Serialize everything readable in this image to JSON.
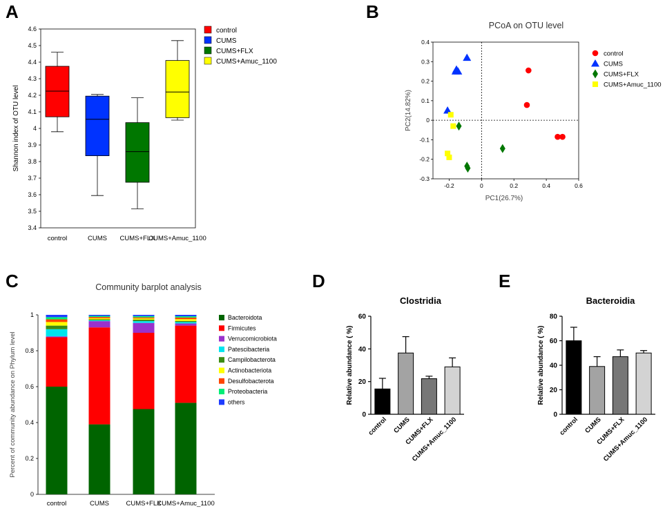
{
  "panels": {
    "A": {
      "letter": "A"
    },
    "B": {
      "letter": "B"
    },
    "C": {
      "letter": "C"
    },
    "D": {
      "letter": "D"
    },
    "E": {
      "letter": "E"
    }
  },
  "chart_data": [
    {
      "panel": "A",
      "type": "box",
      "title": "",
      "ylabel": "Shannon index of OTU level",
      "xlabel": "",
      "ylim": [
        3.4,
        4.6
      ],
      "yticks": [
        "3.4",
        "3.5",
        "3.6",
        "3.7",
        "3.8",
        "3.9",
        "4",
        "4.1",
        "4.2",
        "4.3",
        "4.4",
        "4.5",
        "4.6"
      ],
      "categories": [
        "control",
        "CUMS",
        "CUMS+FLX",
        "CUMS+Amuc_1100"
      ],
      "colors": [
        "#ff0000",
        "#0033ff",
        "#007700",
        "#ffff00"
      ],
      "boxes": [
        {
          "min": 3.98,
          "q1": 4.07,
          "median": 4.225,
          "q3": 4.375,
          "max": 4.46
        },
        {
          "min": 3.595,
          "q1": 3.835,
          "median": 4.055,
          "q3": 4.195,
          "max": 4.205
        },
        {
          "min": 3.515,
          "q1": 3.675,
          "median": 3.86,
          "q3": 4.035,
          "max": 4.185
        },
        {
          "min": 4.05,
          "q1": 4.065,
          "median": 4.22,
          "q3": 4.41,
          "max": 4.53
        }
      ],
      "legend": [
        "control",
        "CUMS",
        "CUMS+FLX",
        "CUMS+Amuc_1100"
      ],
      "legend_position": "right"
    },
    {
      "panel": "B",
      "type": "scatter",
      "title": "PCoA on OTU level",
      "xlabel": "PC1(26.7%)",
      "ylabel": "PC2(14.82%)",
      "xlim": [
        -0.3,
        0.6
      ],
      "ylim": [
        -0.3,
        0.4
      ],
      "xticks": [
        "-0.2",
        "0",
        "0.2",
        "0.4",
        "0.6"
      ],
      "yticks": [
        "-0.3",
        "-0.2",
        "-0.1",
        "0",
        "0.1",
        "0.2",
        "0.3",
        "0.4"
      ],
      "series": [
        {
          "name": "control",
          "marker": "circle",
          "color": "#ff0000",
          "points": [
            [
              0.29,
              0.255
            ],
            [
              0.28,
              0.078
            ],
            [
              0.47,
              -0.085
            ],
            [
              0.5,
              -0.085
            ]
          ]
        },
        {
          "name": "CUMS",
          "marker": "triangle",
          "color": "#0033ff",
          "points": [
            [
              -0.09,
              0.32
            ],
            [
              -0.16,
              0.25
            ],
            [
              -0.145,
              0.25
            ],
            [
              -0.155,
              0.26
            ],
            [
              -0.21,
              0.05
            ]
          ]
        },
        {
          "name": "CUMS+FLX",
          "marker": "diamond",
          "color": "#007700",
          "points": [
            [
              -0.14,
              -0.03
            ],
            [
              0.13,
              -0.145
            ],
            [
              -0.09,
              -0.235
            ],
            [
              -0.085,
              -0.245
            ]
          ]
        },
        {
          "name": "CUMS+Amuc_1100",
          "marker": "square",
          "color": "#ffff00",
          "points": [
            [
              -0.19,
              0.028
            ],
            [
              -0.175,
              -0.03
            ],
            [
              -0.21,
              -0.17
            ],
            [
              -0.2,
              -0.19
            ]
          ]
        }
      ],
      "legend_position": "top-right"
    },
    {
      "panel": "C",
      "type": "bar",
      "stacked": true,
      "title": "Community barplot analysis",
      "ylabel": "Percent of community abundance on Phylum level",
      "xlabel": "",
      "ylim": [
        0,
        1
      ],
      "yticks": [
        "0",
        "0.2",
        "0.4",
        "0.6",
        "0.8",
        "1"
      ],
      "categories": [
        "control",
        "CUMS",
        "CUMS+FLX",
        "CUMS+Amuc_1100"
      ],
      "series": [
        {
          "name": "Bacteroidota",
          "color": "#006400",
          "values": [
            0.6,
            0.39,
            0.475,
            0.51
          ]
        },
        {
          "name": "Firmicutes",
          "color": "#ff0000",
          "values": [
            0.275,
            0.54,
            0.425,
            0.43
          ]
        },
        {
          "name": "Verrucomicrobiota",
          "color": "#9932cc",
          "values": [
            0.005,
            0.035,
            0.055,
            0.012
          ]
        },
        {
          "name": "Patescibacteria",
          "color": "#00e5ee",
          "values": [
            0.04,
            0.005,
            0.01,
            0.008
          ]
        },
        {
          "name": "Campilobacterota",
          "color": "#3c8c14",
          "values": [
            0.02,
            0.005,
            0.008,
            0.006
          ]
        },
        {
          "name": "Actinobacteriota",
          "color": "#ffff00",
          "values": [
            0.02,
            0.006,
            0.007,
            0.01
          ]
        },
        {
          "name": "Desulfobacterota",
          "color": "#ff4500",
          "values": [
            0.015,
            0.007,
            0.006,
            0.009
          ]
        },
        {
          "name": "Proteobacteria",
          "color": "#00ee76",
          "values": [
            0.012,
            0.006,
            0.007,
            0.007
          ]
        },
        {
          "name": "others",
          "color": "#1e3cff",
          "values": [
            0.013,
            0.006,
            0.007,
            0.008
          ]
        }
      ],
      "legend_position": "right"
    },
    {
      "panel": "D",
      "type": "bar",
      "title": "Clostridia",
      "ylabel": "Relative abundance ( %)",
      "xlabel": "",
      "ylim": [
        0,
        60
      ],
      "yticks": [
        "0",
        "20",
        "40",
        "60"
      ],
      "categories": [
        "control",
        "CUMS",
        "CUMS+FLX",
        "CUMS+Amuc_1100"
      ],
      "values": [
        15.5,
        37.5,
        21.8,
        29
      ],
      "errors": [
        6.5,
        10,
        1.5,
        5.5
      ],
      "colors": [
        "#000000",
        "#a3a3a3",
        "#777777",
        "#d3d3d3"
      ]
    },
    {
      "panel": "E",
      "type": "bar",
      "title": "Bacteroidia",
      "ylabel": "Relative abundance ( %)",
      "xlabel": "",
      "ylim": [
        0,
        80
      ],
      "yticks": [
        "0",
        "20",
        "40",
        "60",
        "80"
      ],
      "categories": [
        "control",
        "CUMS",
        "CUMS+FLX",
        "CUMS+Amuc_1100"
      ],
      "values": [
        60,
        39,
        47,
        50
      ],
      "errors": [
        11,
        8,
        5.5,
        2
      ],
      "colors": [
        "#000000",
        "#a3a3a3",
        "#777777",
        "#d3d3d3"
      ]
    }
  ]
}
